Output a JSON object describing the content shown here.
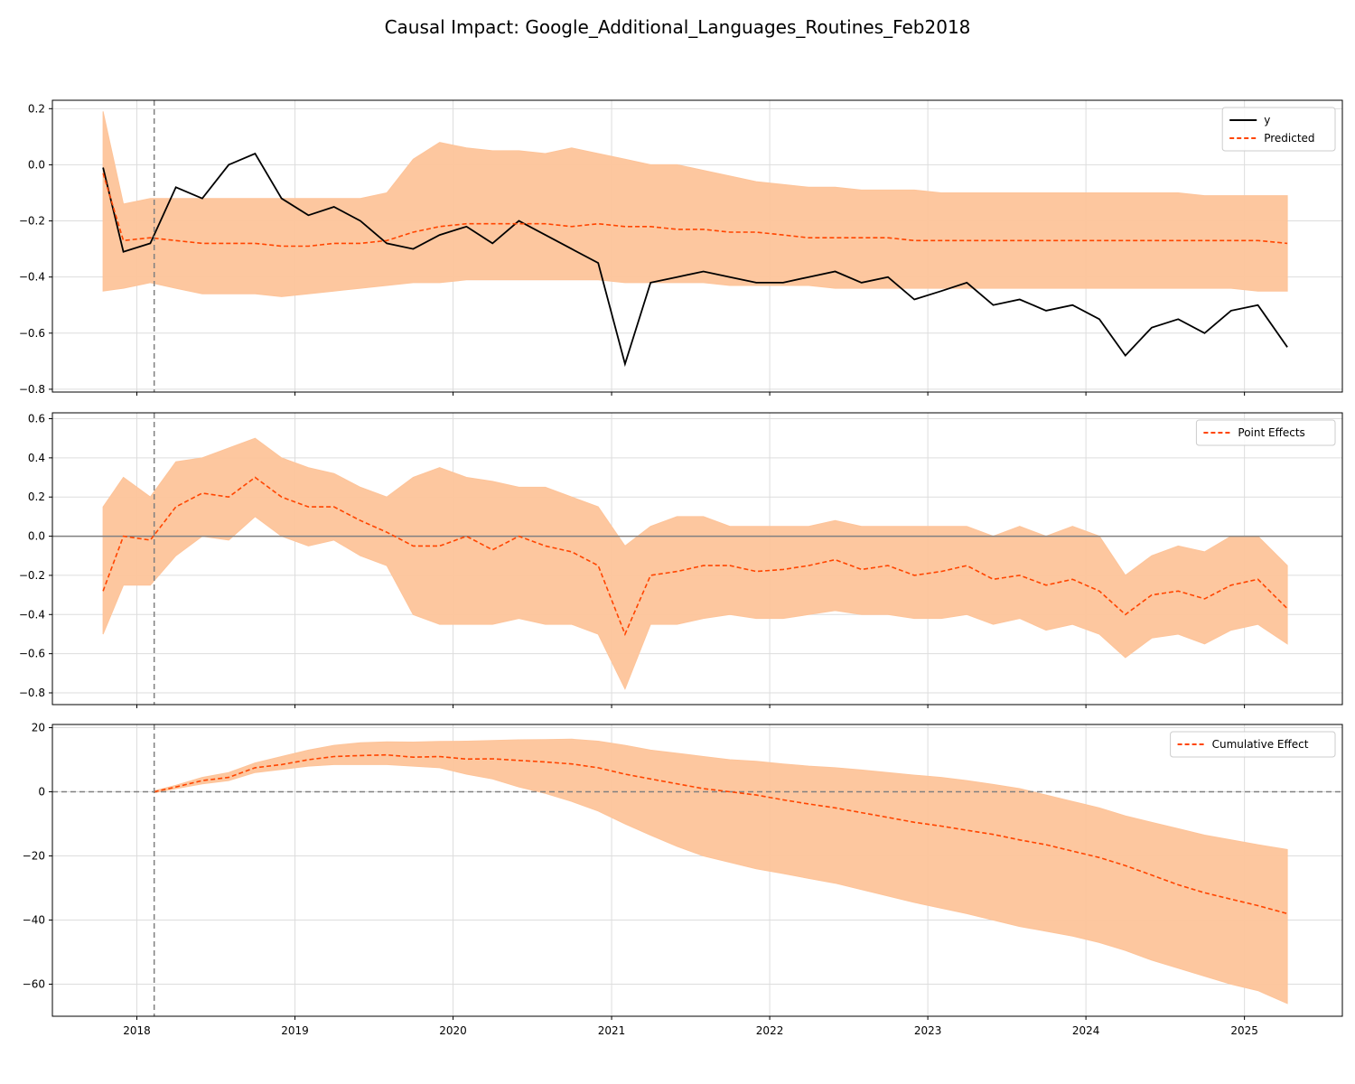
{
  "figure": {
    "title": "Causal Impact: Google_Additional_Languages_Routines_Feb2018"
  },
  "colors": {
    "band": "#fdc49a",
    "predicted": "#ff4500",
    "observed": "#000000",
    "intervention": "#808080",
    "grid": "#dddddd"
  },
  "chart_data": [
    {
      "type": "line",
      "panel": "observed-vs-predicted",
      "title": "",
      "xlabel": "",
      "ylabel": "",
      "xlim": [
        "2017-06-20",
        "2025-08-15"
      ],
      "ylim": [
        -0.81,
        0.23
      ],
      "yticks": [
        0.2,
        0.0,
        -0.2,
        -0.4,
        -0.6,
        -0.8
      ],
      "yticklabels": [
        "0.2",
        "0.0",
        "−0.2",
        "−0.4",
        "−0.6",
        "−0.8"
      ],
      "grid": true,
      "legend_position": "top-right",
      "intervention_date": "2018-02-10",
      "x": [
        "2017-10-15",
        "2017-12-01",
        "2018-02-01",
        "2018-04-01",
        "2018-06-01",
        "2018-08-01",
        "2018-10-01",
        "2018-12-01",
        "2019-02-01",
        "2019-04-01",
        "2019-06-01",
        "2019-08-01",
        "2019-10-01",
        "2019-12-01",
        "2020-02-01",
        "2020-04-01",
        "2020-06-01",
        "2020-08-01",
        "2020-10-01",
        "2020-12-01",
        "2021-02-01",
        "2021-04-01",
        "2021-06-01",
        "2021-08-01",
        "2021-10-01",
        "2021-12-01",
        "2022-02-01",
        "2022-04-01",
        "2022-06-01",
        "2022-08-01",
        "2022-10-01",
        "2022-12-01",
        "2023-02-01",
        "2023-04-01",
        "2023-06-01",
        "2023-08-01",
        "2023-10-01",
        "2023-12-01",
        "2024-02-01",
        "2024-04-01",
        "2024-06-01",
        "2024-08-01",
        "2024-10-01",
        "2024-12-01",
        "2025-02-01",
        "2025-04-10"
      ],
      "series": [
        {
          "name": "y",
          "style": "solid",
          "values": [
            -0.01,
            -0.31,
            -0.28,
            -0.08,
            -0.12,
            0.0,
            0.04,
            -0.12,
            -0.18,
            -0.15,
            -0.2,
            -0.28,
            -0.3,
            -0.25,
            -0.22,
            -0.28,
            -0.2,
            -0.25,
            -0.3,
            -0.35,
            -0.71,
            -0.42,
            -0.4,
            -0.38,
            -0.4,
            -0.42,
            -0.42,
            -0.4,
            -0.38,
            -0.42,
            -0.4,
            -0.48,
            -0.45,
            -0.42,
            -0.5,
            -0.48,
            -0.52,
            -0.5,
            -0.55,
            -0.68,
            -0.58,
            -0.55,
            -0.6,
            -0.52,
            -0.5,
            -0.65
          ]
        },
        {
          "name": "Predicted",
          "style": "dashed",
          "values": [
            -0.03,
            -0.27,
            -0.26,
            -0.27,
            -0.28,
            -0.28,
            -0.28,
            -0.29,
            -0.29,
            -0.28,
            -0.28,
            -0.27,
            -0.24,
            -0.22,
            -0.21,
            -0.21,
            -0.21,
            -0.21,
            -0.22,
            -0.21,
            -0.22,
            -0.22,
            -0.23,
            -0.23,
            -0.24,
            -0.24,
            -0.25,
            -0.26,
            -0.26,
            -0.26,
            -0.26,
            -0.27,
            -0.27,
            -0.27,
            -0.27,
            -0.27,
            -0.27,
            -0.27,
            -0.27,
            -0.27,
            -0.27,
            -0.27,
            -0.27,
            -0.27,
            -0.27,
            -0.28
          ]
        }
      ],
      "band": {
        "upper": [
          0.19,
          -0.14,
          -0.12,
          -0.12,
          -0.12,
          -0.12,
          -0.12,
          -0.12,
          -0.12,
          -0.12,
          -0.12,
          -0.1,
          0.02,
          0.08,
          0.06,
          0.05,
          0.05,
          0.04,
          0.06,
          0.04,
          0.02,
          0.0,
          0.0,
          -0.02,
          -0.04,
          -0.06,
          -0.07,
          -0.08,
          -0.08,
          -0.09,
          -0.09,
          -0.09,
          -0.1,
          -0.1,
          -0.1,
          -0.1,
          -0.1,
          -0.1,
          -0.1,
          -0.1,
          -0.1,
          -0.1,
          -0.11,
          -0.11,
          -0.11,
          -0.11
        ],
        "lower": [
          -0.45,
          -0.44,
          -0.42,
          -0.44,
          -0.46,
          -0.46,
          -0.46,
          -0.47,
          -0.46,
          -0.45,
          -0.44,
          -0.43,
          -0.42,
          -0.42,
          -0.41,
          -0.41,
          -0.41,
          -0.41,
          -0.41,
          -0.41,
          -0.42,
          -0.42,
          -0.42,
          -0.42,
          -0.43,
          -0.43,
          -0.43,
          -0.43,
          -0.44,
          -0.44,
          -0.44,
          -0.44,
          -0.44,
          -0.44,
          -0.44,
          -0.44,
          -0.44,
          -0.44,
          -0.44,
          -0.44,
          -0.44,
          -0.44,
          -0.44,
          -0.44,
          -0.45,
          -0.45
        ]
      }
    },
    {
      "type": "line",
      "panel": "point-effects",
      "title": "",
      "xlabel": "",
      "ylabel": "",
      "xlim": [
        "2017-06-20",
        "2025-08-15"
      ],
      "ylim": [
        -0.86,
        0.63
      ],
      "yticks": [
        0.6,
        0.4,
        0.2,
        0.0,
        -0.2,
        -0.4,
        -0.6,
        -0.8
      ],
      "yticklabels": [
        "0.6",
        "0.4",
        "0.2",
        "0.0",
        "−0.2",
        "−0.4",
        "−0.6",
        "−0.8"
      ],
      "grid": true,
      "legend_position": "top-right",
      "zero_line": true,
      "intervention_date": "2018-02-10",
      "x": [
        "2017-10-15",
        "2017-12-01",
        "2018-02-01",
        "2018-04-01",
        "2018-06-01",
        "2018-08-01",
        "2018-10-01",
        "2018-12-01",
        "2019-02-01",
        "2019-04-01",
        "2019-06-01",
        "2019-08-01",
        "2019-10-01",
        "2019-12-01",
        "2020-02-01",
        "2020-04-01",
        "2020-06-01",
        "2020-08-01",
        "2020-10-01",
        "2020-12-01",
        "2021-02-01",
        "2021-04-01",
        "2021-06-01",
        "2021-08-01",
        "2021-10-01",
        "2021-12-01",
        "2022-02-01",
        "2022-04-01",
        "2022-06-01",
        "2022-08-01",
        "2022-10-01",
        "2022-12-01",
        "2023-02-01",
        "2023-04-01",
        "2023-06-01",
        "2023-08-01",
        "2023-10-01",
        "2023-12-01",
        "2024-02-01",
        "2024-04-01",
        "2024-06-01",
        "2024-08-01",
        "2024-10-01",
        "2024-12-01",
        "2025-02-01",
        "2025-04-10"
      ],
      "series": [
        {
          "name": "Point Effects",
          "style": "dashed",
          "values": [
            -0.28,
            0.0,
            -0.02,
            0.15,
            0.22,
            0.2,
            0.3,
            0.2,
            0.15,
            0.15,
            0.08,
            0.02,
            -0.05,
            -0.05,
            0.0,
            -0.07,
            0.0,
            -0.05,
            -0.08,
            -0.15,
            -0.5,
            -0.2,
            -0.18,
            -0.15,
            -0.15,
            -0.18,
            -0.17,
            -0.15,
            -0.12,
            -0.17,
            -0.15,
            -0.2,
            -0.18,
            -0.15,
            -0.22,
            -0.2,
            -0.25,
            -0.22,
            -0.28,
            -0.4,
            -0.3,
            -0.28,
            -0.32,
            -0.25,
            -0.22,
            -0.37
          ]
        }
      ],
      "band": {
        "upper": [
          0.15,
          0.3,
          0.2,
          0.38,
          0.4,
          0.45,
          0.5,
          0.4,
          0.35,
          0.32,
          0.25,
          0.2,
          0.3,
          0.35,
          0.3,
          0.28,
          0.25,
          0.25,
          0.2,
          0.15,
          -0.05,
          0.05,
          0.1,
          0.1,
          0.05,
          0.05,
          0.05,
          0.05,
          0.08,
          0.05,
          0.05,
          0.05,
          0.05,
          0.05,
          0.0,
          0.05,
          0.0,
          0.05,
          0.0,
          -0.2,
          -0.1,
          -0.05,
          -0.08,
          0.0,
          0.0,
          -0.15
        ],
        "lower": [
          -0.5,
          -0.25,
          -0.25,
          -0.1,
          0.0,
          -0.02,
          0.1,
          0.0,
          -0.05,
          -0.02,
          -0.1,
          -0.15,
          -0.4,
          -0.45,
          -0.45,
          -0.45,
          -0.42,
          -0.45,
          -0.45,
          -0.5,
          -0.78,
          -0.45,
          -0.45,
          -0.42,
          -0.4,
          -0.42,
          -0.42,
          -0.4,
          -0.38,
          -0.4,
          -0.4,
          -0.42,
          -0.42,
          -0.4,
          -0.45,
          -0.42,
          -0.48,
          -0.45,
          -0.5,
          -0.62,
          -0.52,
          -0.5,
          -0.55,
          -0.48,
          -0.45,
          -0.55
        ]
      }
    },
    {
      "type": "line",
      "panel": "cumulative-effect",
      "title": "",
      "xlabel": "",
      "ylabel": "",
      "xlim": [
        "2017-06-20",
        "2025-08-15"
      ],
      "ylim": [
        -70,
        21
      ],
      "yticks": [
        20,
        0,
        -20,
        -40,
        -60
      ],
      "yticklabels": [
        "20",
        "0",
        "−20",
        "−40",
        "−60"
      ],
      "xticks": [
        "2018-01-01",
        "2019-01-01",
        "2020-01-01",
        "2021-01-01",
        "2022-01-01",
        "2023-01-01",
        "2024-01-01",
        "2025-01-01"
      ],
      "xticklabels": [
        "2018",
        "2019",
        "2020",
        "2021",
        "2022",
        "2023",
        "2024",
        "2025"
      ],
      "grid": true,
      "legend_position": "top-right",
      "zero_line": true,
      "intervention_date": "2018-02-10",
      "x": [
        "2018-02-10",
        "2018-04-01",
        "2018-06-01",
        "2018-08-01",
        "2018-10-01",
        "2018-12-01",
        "2019-02-01",
        "2019-04-01",
        "2019-06-01",
        "2019-08-01",
        "2019-10-01",
        "2019-12-01",
        "2020-02-01",
        "2020-04-01",
        "2020-06-01",
        "2020-08-01",
        "2020-10-01",
        "2020-12-01",
        "2021-02-01",
        "2021-04-01",
        "2021-06-01",
        "2021-08-01",
        "2021-10-01",
        "2021-12-01",
        "2022-02-01",
        "2022-04-01",
        "2022-06-01",
        "2022-08-01",
        "2022-10-01",
        "2022-12-01",
        "2023-02-01",
        "2023-04-01",
        "2023-06-01",
        "2023-08-01",
        "2023-10-01",
        "2023-12-01",
        "2024-02-01",
        "2024-04-01",
        "2024-06-01",
        "2024-08-01",
        "2024-10-01",
        "2024-12-01",
        "2025-02-01",
        "2025-04-10"
      ],
      "series": [
        {
          "name": "Cumulative Effect",
          "style": "dashed",
          "values": [
            0,
            1.5,
            3.5,
            4.5,
            7.5,
            8.5,
            10,
            11,
            11.3,
            11.5,
            10.8,
            11,
            10.2,
            10.3,
            9.8,
            9.3,
            8.7,
            7.5,
            5.5,
            4,
            2.5,
            1,
            0,
            -1,
            -2.5,
            -3.8,
            -5,
            -6.5,
            -8,
            -9.5,
            -10.7,
            -12,
            -13.3,
            -15,
            -16.5,
            -18.5,
            -20.5,
            -23,
            -26,
            -29,
            -31.5,
            -33.5,
            -35.5,
            -38
          ]
        }
      ],
      "band": {
        "upper": [
          0.3,
          2,
          4.5,
          6,
          9,
          11,
          13,
          14.5,
          15.3,
          15.6,
          15.5,
          15.7,
          15.8,
          16,
          16.2,
          16.3,
          16.4,
          15.8,
          14.5,
          13,
          12,
          11,
          10,
          9.5,
          8.7,
          8,
          7.5,
          6.8,
          6,
          5.2,
          4.5,
          3.5,
          2.3,
          1,
          -1,
          -3,
          -5,
          -7.5,
          -9.5,
          -11.5,
          -13.5,
          -15,
          -16.5,
          -18
        ],
        "lower": [
          -0.3,
          1,
          2.5,
          3.5,
          6,
          7,
          8,
          8.5,
          8.5,
          8.5,
          8,
          7.5,
          5.5,
          4,
          1.5,
          -0.5,
          -3,
          -6,
          -10,
          -13.5,
          -17,
          -20,
          -22,
          -24,
          -25.5,
          -27,
          -28.5,
          -30.5,
          -32.5,
          -34.5,
          -36.3,
          -38,
          -40,
          -42,
          -43.5,
          -45,
          -47,
          -49.5,
          -52.5,
          -55,
          -57.5,
          -60,
          -62,
          -66
        ]
      }
    }
  ]
}
